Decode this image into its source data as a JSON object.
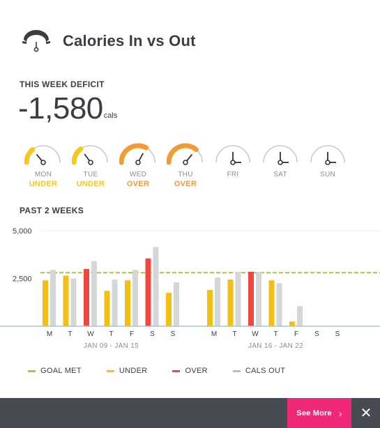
{
  "header": {
    "title": "Calories In vs Out",
    "icon": "gauge-icon"
  },
  "week": {
    "label": "THIS WEEK DEFICIT",
    "value": "-1,580",
    "unit": "cals"
  },
  "days": [
    {
      "name": "MON",
      "status": "UNDER",
      "state": "under",
      "level": 0.28
    },
    {
      "name": "TUE",
      "status": "UNDER",
      "state": "under",
      "level": 0.3
    },
    {
      "name": "WED",
      "status": "OVER",
      "state": "over",
      "level": 0.66
    },
    {
      "name": "THU",
      "status": "OVER",
      "state": "over",
      "level": 0.72
    },
    {
      "name": "FRI",
      "status": "",
      "state": "none",
      "level": 0.5
    },
    {
      "name": "SAT",
      "status": "",
      "state": "none",
      "level": 0.5
    },
    {
      "name": "SUN",
      "status": "",
      "state": "none",
      "level": 0.5
    }
  ],
  "colors": {
    "under": "#f5be14",
    "over": "#f0473f",
    "cals_out": "#d3d7da",
    "goal": "#a3c93a",
    "gauge_track": "#c8cbce",
    "under_arc": "#f7c81a",
    "over_arc": "#f39a31"
  },
  "past": {
    "label": "PAST 2 WEEKS"
  },
  "chart_data": {
    "type": "bar",
    "ylim": [
      0,
      5000
    ],
    "yticks": [
      "5,000",
      "2,500"
    ],
    "ytick_values": [
      5000,
      2500
    ],
    "goal": 2800,
    "groups": [
      {
        "label": "JAN 09 - JAN 15",
        "days": [
          "M",
          "T",
          "W",
          "T",
          "F",
          "S",
          "S"
        ],
        "cals_in": [
          2400,
          2650,
          3000,
          1850,
          2400,
          3550,
          1750
        ],
        "in_state": [
          "under",
          "under",
          "over",
          "under",
          "under",
          "over",
          "under"
        ],
        "cals_out": [
          2950,
          2500,
          3400,
          2450,
          2950,
          4150,
          2300
        ]
      },
      {
        "label": "JAN 16 - JAN 22",
        "days": [
          "M",
          "T",
          "W",
          "T",
          "F",
          "S",
          "S"
        ],
        "cals_in": [
          1900,
          2450,
          2850,
          2400,
          250,
          null,
          null
        ],
        "in_state": [
          "under",
          "under",
          "over",
          "under",
          "under",
          "none",
          "none"
        ],
        "cals_out": [
          2550,
          2850,
          2850,
          2250,
          1050,
          null,
          null
        ]
      }
    ]
  },
  "legend": [
    {
      "label": "GOAL MET",
      "color": "#a3c93a"
    },
    {
      "label": "UNDER",
      "color": "#f5be14"
    },
    {
      "label": "OVER",
      "color": "#f0473f"
    },
    {
      "label": "CALS OUT",
      "color": "#b9bdc1"
    }
  ],
  "footer": {
    "see_more": "See More",
    "chevron": "chevron-right-icon",
    "close": "close-icon"
  }
}
